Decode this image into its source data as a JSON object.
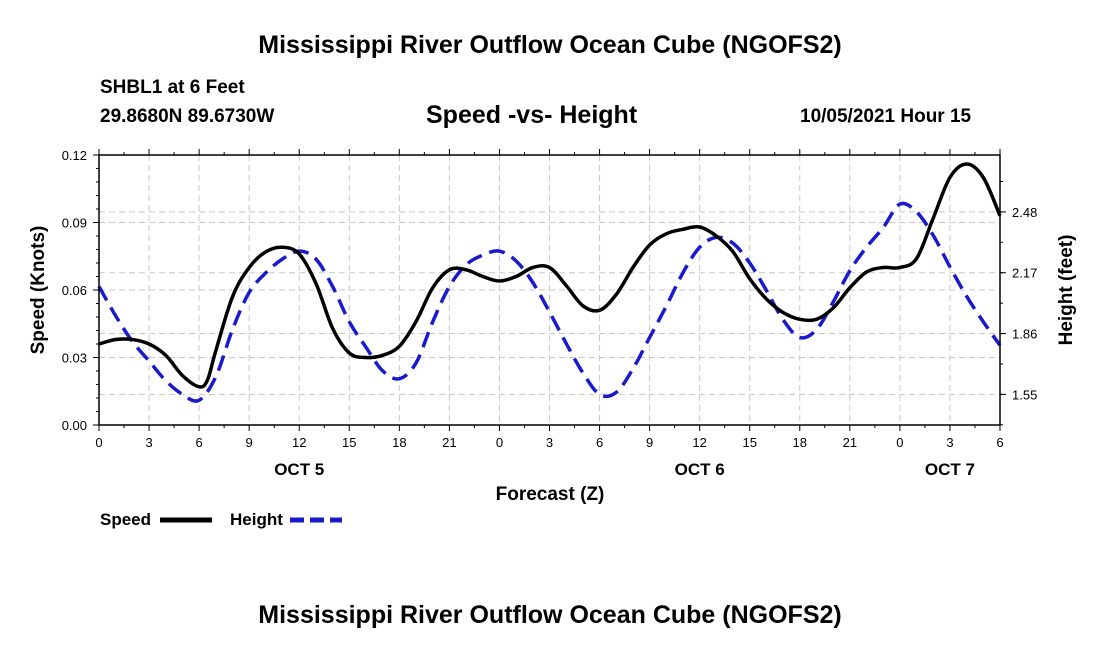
{
  "header": {
    "title": "Mississippi River Outflow Ocean Cube (NGOFS2)",
    "station": "SHBL1 at 6 Feet",
    "coords": "29.8680N  89.6730W",
    "datetime": "10/05/2021 Hour 15"
  },
  "footer": {
    "title": "Mississippi River Outflow Ocean Cube (NGOFS2)"
  },
  "chart_data": {
    "type": "line",
    "title": "Speed -vs- Height",
    "xlabel": "Forecast (Z)",
    "ylabel": "Speed (Knots)",
    "y2label": "Height (feet)",
    "xlim": [
      0,
      54
    ],
    "ylim": [
      0,
      0.12
    ],
    "y2lim": [
      1.394,
      2.77
    ],
    "grid": true,
    "x_ticks": [
      0,
      3,
      6,
      9,
      12,
      15,
      18,
      21,
      24,
      27,
      30,
      33,
      36,
      39,
      42,
      45,
      48,
      51,
      54
    ],
    "x_tick_labels": [
      "0",
      "3",
      "6",
      "9",
      "12",
      "15",
      "18",
      "21",
      "0",
      "3",
      "6",
      "9",
      "12",
      "15",
      "18",
      "21",
      "0",
      "3",
      "6"
    ],
    "y_ticks": [
      0,
      0.03,
      0.06,
      0.09,
      0.12
    ],
    "y_tick_labels": [
      "0.00",
      "0.03",
      "0.06",
      "0.09",
      "0.12"
    ],
    "y2_ticks": [
      1.55,
      1.86,
      2.17,
      2.48
    ],
    "y2_tick_labels": [
      "1.55",
      "1.86",
      "2.17",
      "2.48"
    ],
    "date_labels": [
      {
        "x": 12,
        "label": "OCT 5"
      },
      {
        "x": 36,
        "label": "OCT 6"
      },
      {
        "x": 51,
        "label": "OCT 7"
      }
    ],
    "legend": {
      "position": "bottom-left"
    },
    "series": [
      {
        "name": "Speed",
        "axis": "left",
        "color": "#000000",
        "style": "solid",
        "x": [
          0,
          1,
          2,
          3,
          4,
          5,
          6,
          6.5,
          7,
          8,
          9,
          10,
          11,
          12,
          13,
          14,
          15,
          16,
          17,
          18,
          19,
          20,
          21,
          22,
          23,
          24,
          25,
          26,
          27,
          28,
          29,
          30,
          31,
          32,
          33,
          34,
          35,
          36,
          37,
          38,
          39,
          40,
          41,
          42,
          43,
          44,
          45,
          46,
          47,
          48,
          49,
          50,
          51,
          52,
          53,
          54
        ],
        "values": [
          0.036,
          0.038,
          0.038,
          0.036,
          0.031,
          0.022,
          0.017,
          0.02,
          0.033,
          0.057,
          0.07,
          0.077,
          0.079,
          0.076,
          0.063,
          0.043,
          0.032,
          0.03,
          0.031,
          0.035,
          0.046,
          0.061,
          0.069,
          0.069,
          0.066,
          0.064,
          0.066,
          0.07,
          0.07,
          0.062,
          0.053,
          0.051,
          0.058,
          0.07,
          0.08,
          0.085,
          0.087,
          0.088,
          0.084,
          0.077,
          0.065,
          0.056,
          0.05,
          0.047,
          0.047,
          0.052,
          0.061,
          0.068,
          0.07,
          0.07,
          0.074,
          0.092,
          0.11,
          0.116,
          0.11,
          0.093
        ]
      },
      {
        "name": "Height",
        "axis": "right",
        "color": "#1a1acc",
        "style": "dashed",
        "x": [
          0,
          1,
          2,
          3,
          4,
          5,
          6,
          7,
          8,
          9,
          10,
          11,
          12,
          13,
          14,
          15,
          16,
          17,
          18,
          19,
          20,
          21,
          22,
          23,
          24,
          25,
          26,
          27,
          28,
          29,
          30,
          31,
          32,
          33,
          34,
          35,
          36,
          37,
          38,
          39,
          40,
          41,
          42,
          43,
          44,
          45,
          46,
          47,
          48,
          49,
          50,
          51,
          52,
          53,
          54
        ],
        "values": [
          2.1,
          1.95,
          1.82,
          1.72,
          1.62,
          1.55,
          1.52,
          1.64,
          1.88,
          2.07,
          2.17,
          2.24,
          2.28,
          2.24,
          2.1,
          1.92,
          1.79,
          1.67,
          1.63,
          1.71,
          1.92,
          2.1,
          2.21,
          2.26,
          2.28,
          2.23,
          2.12,
          1.97,
          1.81,
          1.66,
          1.55,
          1.56,
          1.68,
          1.84,
          2.0,
          2.17,
          2.3,
          2.35,
          2.32,
          2.22,
          2.08,
          1.93,
          1.84,
          1.88,
          2.02,
          2.18,
          2.3,
          2.4,
          2.52,
          2.48,
          2.36,
          2.2,
          2.05,
          1.92,
          1.8
        ]
      }
    ]
  }
}
